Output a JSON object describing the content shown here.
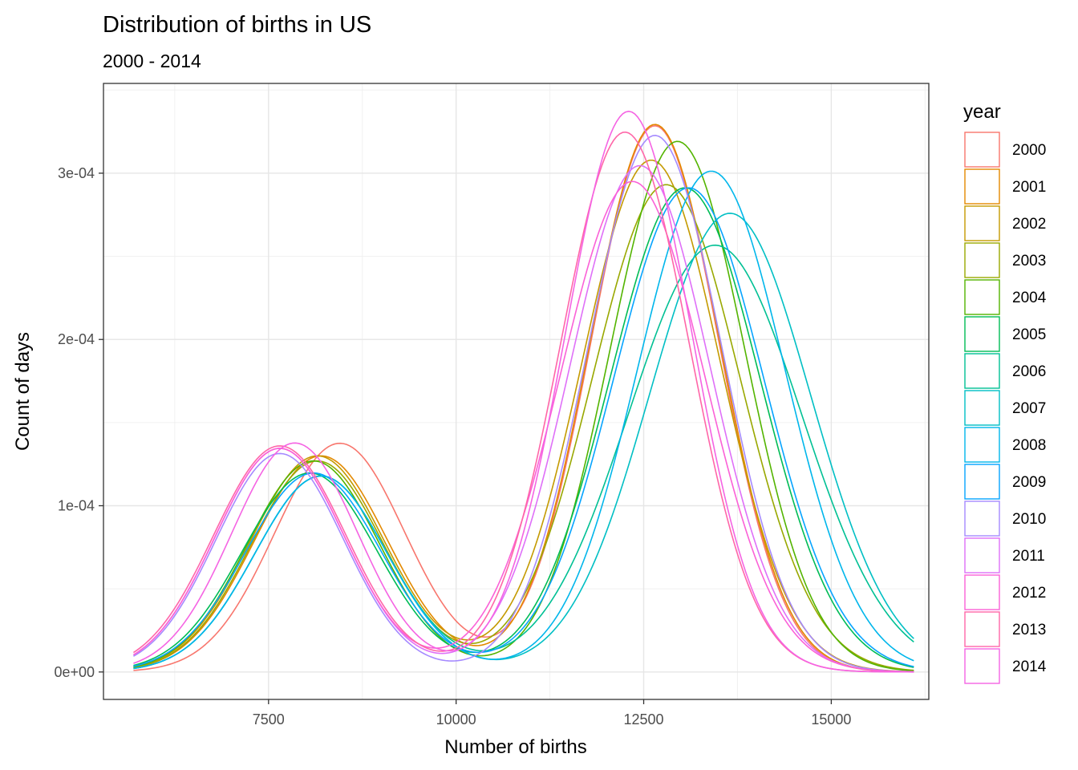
{
  "chart_data": {
    "type": "line",
    "title": "Distribution of births in US",
    "subtitle": "2000 - 2014",
    "xlabel": "Number of births",
    "ylabel": "Count of days",
    "xlim": [
      5300,
      16300
    ],
    "ylim": [
      -1.65e-05,
      0.000354
    ],
    "x_ticks": [
      7500,
      10000,
      12500,
      15000
    ],
    "x_tick_labels": [
      "7500",
      "10000",
      "12500",
      "15000"
    ],
    "y_ticks": [
      0,
      0.0001,
      0.0002,
      0.0003
    ],
    "y_tick_labels": [
      "0e+00",
      "1e-04",
      "2e-04",
      "3e-04"
    ],
    "x_range": [
      5700,
      16100
    ],
    "grid": true,
    "legend": {
      "title": "year",
      "position": "right",
      "labels": [
        "2000",
        "2001",
        "2002",
        "2003",
        "2004",
        "2005",
        "2006",
        "2007",
        "2008",
        "2009",
        "2010",
        "2011",
        "2012",
        "2013",
        "2014"
      ]
    },
    "series": [
      {
        "name": "2000",
        "color": "#F8766D",
        "modes": [
          {
            "weight": 0.3,
            "mean": 8450,
            "sd": 870
          },
          {
            "weight": 0.7,
            "mean": 12650,
            "sd": 850
          }
        ]
      },
      {
        "name": "2001",
        "color": "#E38900",
        "modes": [
          {
            "weight": 0.29,
            "mean": 8200,
            "sd": 890
          },
          {
            "weight": 0.71,
            "mean": 12650,
            "sd": 860
          }
        ]
      },
      {
        "name": "2002",
        "color": "#C49A00",
        "modes": [
          {
            "weight": 0.29,
            "mean": 8150,
            "sd": 890
          },
          {
            "weight": 0.71,
            "mean": 12600,
            "sd": 920
          }
        ]
      },
      {
        "name": "2003",
        "color": "#99A800",
        "modes": [
          {
            "weight": 0.28,
            "mean": 8150,
            "sd": 880
          },
          {
            "weight": 0.72,
            "mean": 12800,
            "sd": 980
          }
        ]
      },
      {
        "name": "2004",
        "color": "#53B400",
        "modes": [
          {
            "weight": 0.28,
            "mean": 8100,
            "sd": 880
          },
          {
            "weight": 0.72,
            "mean": 12950,
            "sd": 900
          }
        ]
      },
      {
        "name": "2005",
        "color": "#00BC56",
        "modes": [
          {
            "weight": 0.27,
            "mean": 8050,
            "sd": 900
          },
          {
            "weight": 0.73,
            "mean": 13050,
            "sd": 1000
          }
        ]
      },
      {
        "name": "2006",
        "color": "#00C094",
        "modes": [
          {
            "weight": 0.26,
            "mean": 8200,
            "sd": 880
          },
          {
            "weight": 0.74,
            "mean": 13450,
            "sd": 1150
          }
        ]
      },
      {
        "name": "2007",
        "color": "#00BFC4",
        "modes": [
          {
            "weight": 0.26,
            "mean": 8200,
            "sd": 880
          },
          {
            "weight": 0.74,
            "mean": 13650,
            "sd": 1070
          }
        ]
      },
      {
        "name": "2008",
        "color": "#00B6EB",
        "modes": [
          {
            "weight": 0.26,
            "mean": 8200,
            "sd": 880
          },
          {
            "weight": 0.74,
            "mean": 13400,
            "sd": 980
          }
        ]
      },
      {
        "name": "2009",
        "color": "#06A4FF",
        "modes": [
          {
            "weight": 0.27,
            "mean": 8100,
            "sd": 900
          },
          {
            "weight": 0.73,
            "mean": 13100,
            "sd": 1000
          }
        ]
      },
      {
        "name": "2010",
        "color": "#A58AFF",
        "modes": [
          {
            "weight": 0.28,
            "mean": 7650,
            "sd": 850
          },
          {
            "weight": 0.72,
            "mean": 12650,
            "sd": 890
          }
        ]
      },
      {
        "name": "2011",
        "color": "#DF70F8",
        "modes": [
          {
            "weight": 0.29,
            "mean": 7650,
            "sd": 860
          },
          {
            "weight": 0.71,
            "mean": 12450,
            "sd": 930
          }
        ]
      },
      {
        "name": "2012",
        "color": "#FB61D7",
        "modes": [
          {
            "weight": 0.29,
            "mean": 7650,
            "sd": 860
          },
          {
            "weight": 0.71,
            "mean": 12350,
            "sd": 960
          }
        ]
      },
      {
        "name": "2013",
        "color": "#FF66A8",
        "modes": [
          {
            "weight": 0.3,
            "mean": 7650,
            "sd": 880
          },
          {
            "weight": 0.7,
            "mean": 12250,
            "sd": 860
          }
        ]
      },
      {
        "name": "2014",
        "color": "#F564E3",
        "modes": [
          {
            "weight": 0.29,
            "mean": 7850,
            "sd": 840
          },
          {
            "weight": 0.71,
            "mean": 12300,
            "sd": 840
          }
        ]
      }
    ]
  }
}
